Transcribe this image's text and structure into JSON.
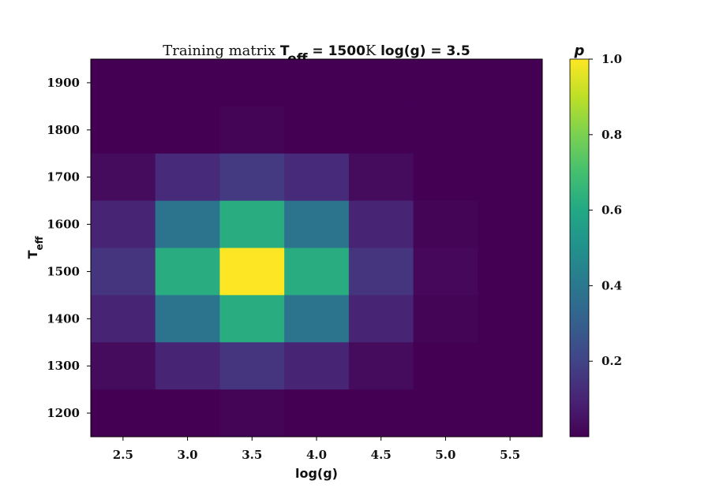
{
  "chart_data": {
    "type": "heatmap",
    "title": {
      "prefix": "Training matrix ",
      "teff_main": "T",
      "teff_sub": "eff",
      "teff_eq": " = 1500",
      "teff_unit": "K ",
      "logg_part": "log(g) = 3.5"
    },
    "xlabel": "log(g)",
    "ylabel": {
      "main": "T",
      "sub": "eff"
    },
    "x": [
      2.5,
      3.0,
      3.5,
      4.0,
      4.5,
      5.0,
      5.5
    ],
    "y": [
      1900,
      1800,
      1700,
      1600,
      1500,
      1400,
      1300,
      1200
    ],
    "x_ticks": [
      "2.5",
      "3.0",
      "3.5",
      "4.0",
      "4.5",
      "5.0",
      "5.5"
    ],
    "y_ticks": [
      "1900",
      "1800",
      "1700",
      "1600",
      "1500",
      "1400",
      "1300",
      "1200"
    ],
    "xlim": [
      2.25,
      5.75
    ],
    "ylim": [
      1150,
      1950
    ],
    "values": [
      [
        0.0,
        0.0,
        0.0,
        0.0,
        0.0,
        0.0,
        0.0
      ],
      [
        0.0,
        0.0,
        0.01,
        0.0,
        0.0,
        0.0,
        0.0
      ],
      [
        0.03,
        0.12,
        0.17,
        0.12,
        0.03,
        0.0,
        0.0
      ],
      [
        0.1,
        0.38,
        0.62,
        0.38,
        0.1,
        0.01,
        0.0
      ],
      [
        0.15,
        0.62,
        1.0,
        0.62,
        0.15,
        0.02,
        0.0
      ],
      [
        0.1,
        0.38,
        0.62,
        0.38,
        0.1,
        0.01,
        0.0
      ],
      [
        0.03,
        0.1,
        0.15,
        0.1,
        0.03,
        0.0,
        0.0
      ],
      [
        0.0,
        0.0,
        0.01,
        0.0,
        0.0,
        0.0,
        0.0
      ]
    ],
    "colormap": "viridis",
    "colorbar": {
      "label": "p",
      "range": [
        0.0,
        1.0
      ],
      "ticks": [
        "0.2",
        "0.4",
        "0.6",
        "0.8",
        "1.0"
      ],
      "tick_values": [
        0.2,
        0.4,
        0.6,
        0.8,
        1.0
      ]
    },
    "grid": false
  }
}
